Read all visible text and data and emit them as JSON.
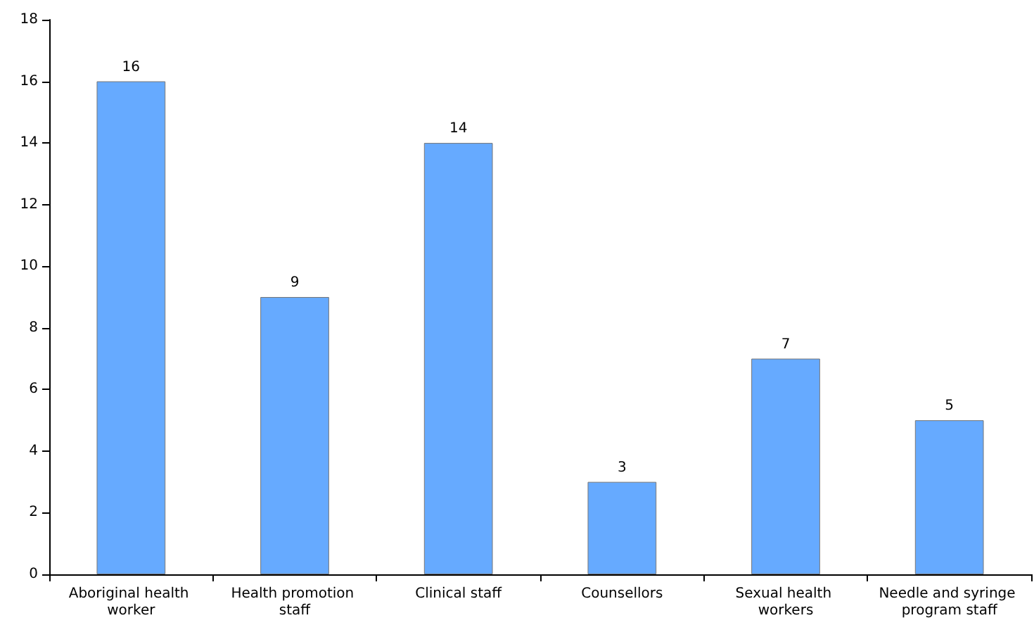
{
  "chart_data": {
    "type": "bar",
    "categories": [
      "Aboriginal health worker",
      "Health promotion staff",
      "Clinical staff",
      "Counsellors",
      "Sexual health workers",
      "Needle and syringe program staff"
    ],
    "values": [
      16,
      9,
      14,
      3,
      7,
      5
    ],
    "color": "#66aaff",
    "ylim": [
      0,
      18
    ],
    "yticks": [
      0,
      2,
      4,
      6,
      8,
      10,
      12,
      14,
      16,
      18
    ],
    "grid": false,
    "data_labels": true
  }
}
